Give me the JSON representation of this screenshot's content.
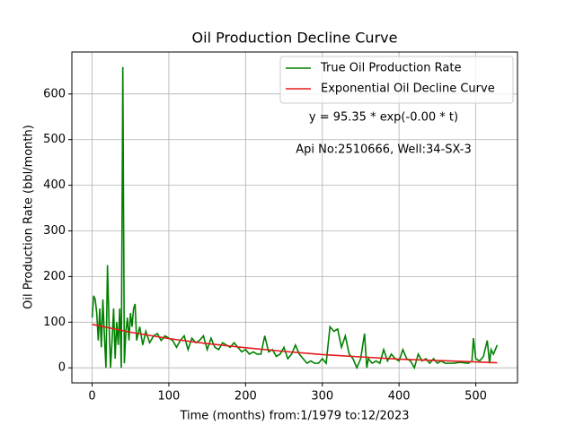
{
  "chart_data": {
    "type": "line",
    "title": "Oil Production Decline Curve",
    "xlabel": "Time (months) from:1/1979 to:12/2023",
    "ylabel": "Oil Production Rate (bbl/month)",
    "annotations": [
      "y = 95.35 * exp(-0.00 * t)",
      "Api No:2510666, Well:34-SX-3"
    ],
    "xlim": [
      -26.4,
      554.4
    ],
    "xticks": [
      0,
      100,
      200,
      300,
      400,
      500
    ],
    "ylim": [
      -33,
      692
    ],
    "yticks": [
      0,
      100,
      200,
      300,
      400,
      500,
      600
    ],
    "grid": true,
    "legend": "upper right",
    "series": [
      {
        "name": "True Oil Production Rate",
        "color": "#008000",
        "x": [
          0,
          2,
          4,
          6,
          8,
          10,
          12,
          14,
          16,
          18,
          20,
          22,
          24,
          26,
          28,
          30,
          32,
          34,
          36,
          38,
          40,
          42,
          44,
          46,
          48,
          50,
          52,
          54,
          56,
          58,
          62,
          66,
          70,
          75,
          80,
          85,
          90,
          95,
          100,
          105,
          110,
          115,
          120,
          125,
          130,
          135,
          140,
          145,
          150,
          155,
          160,
          165,
          170,
          175,
          180,
          185,
          190,
          195,
          200,
          205,
          210,
          215,
          220,
          225,
          230,
          235,
          240,
          245,
          250,
          255,
          260,
          265,
          270,
          275,
          280,
          285,
          290,
          295,
          300,
          305,
          310,
          315,
          320,
          325,
          330,
          335,
          340,
          345,
          350,
          355,
          358,
          360,
          365,
          370,
          375,
          380,
          385,
          390,
          395,
          400,
          405,
          410,
          415,
          420,
          425,
          430,
          435,
          440,
          445,
          450,
          455,
          460,
          470,
          480,
          490,
          495,
          497,
          500,
          505,
          510,
          515,
          518,
          520,
          523,
          528
        ],
        "values": [
          110,
          158,
          150,
          120,
          60,
          130,
          45,
          150,
          70,
          0,
          225,
          100,
          0,
          60,
          130,
          20,
          100,
          50,
          130,
          0,
          659,
          10,
          80,
          110,
          60,
          120,
          90,
          130,
          140,
          60,
          90,
          50,
          80,
          55,
          70,
          75,
          60,
          70,
          65,
          60,
          45,
          60,
          70,
          40,
          65,
          55,
          60,
          70,
          40,
          65,
          45,
          40,
          55,
          50,
          45,
          55,
          45,
          35,
          40,
          30,
          35,
          30,
          30,
          70,
          35,
          40,
          25,
          30,
          45,
          20,
          30,
          50,
          30,
          20,
          10,
          15,
          10,
          10,
          20,
          10,
          90,
          80,
          85,
          45,
          70,
          30,
          20,
          0,
          20,
          75,
          0,
          20,
          10,
          15,
          10,
          40,
          15,
          30,
          20,
          15,
          40,
          20,
          15,
          0,
          30,
          15,
          20,
          10,
          20,
          10,
          15,
          10,
          10,
          12,
          10,
          15,
          65,
          20,
          15,
          25,
          60,
          10,
          40,
          30,
          50
        ]
      },
      {
        "name": "Exponential Oil Decline Curve",
        "color": "#e41a1c",
        "x": [
          0,
          50,
          100,
          150,
          200,
          250,
          300,
          350,
          400,
          450,
          500,
          528
        ],
        "values": [
          95.35,
          78,
          64,
          53,
          44,
          36,
          29,
          24,
          19,
          16,
          13,
          11
        ]
      }
    ]
  }
}
